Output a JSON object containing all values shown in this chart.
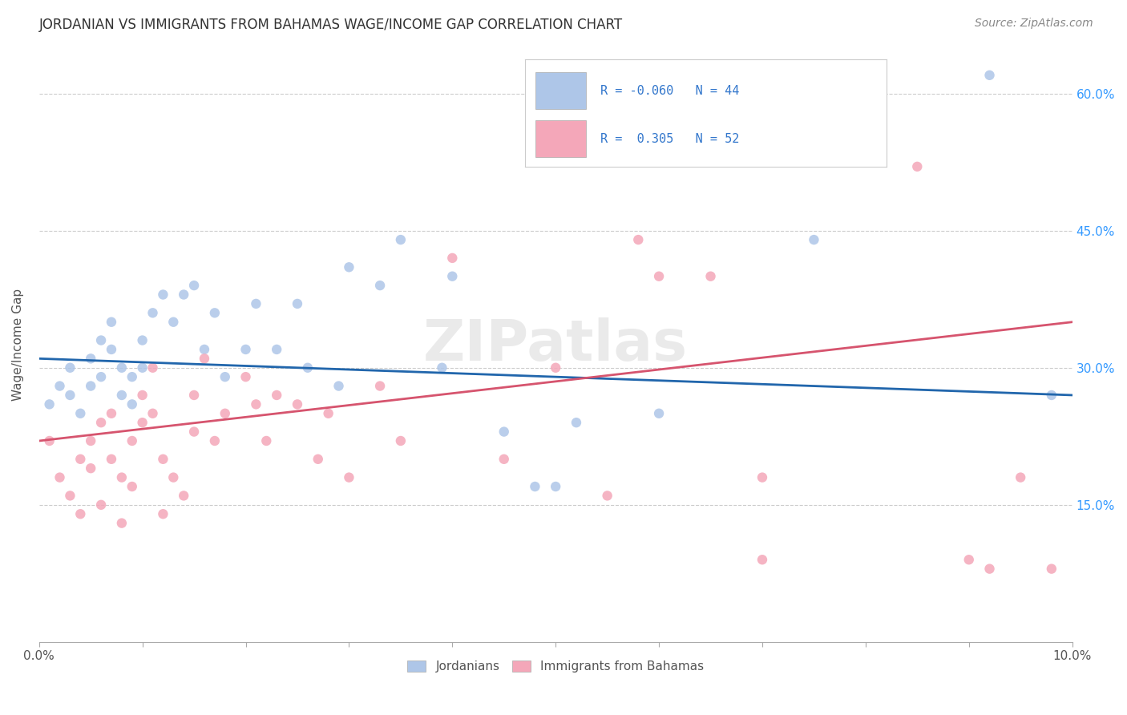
{
  "title": "JORDANIAN VS IMMIGRANTS FROM BAHAMAS WAGE/INCOME GAP CORRELATION CHART",
  "source": "Source: ZipAtlas.com",
  "ylabel": "Wage/Income Gap",
  "ytick_labels": [
    "15.0%",
    "30.0%",
    "45.0%",
    "60.0%"
  ],
  "ytick_positions": [
    15,
    30,
    45,
    60
  ],
  "legend_labels": [
    "Jordanians",
    "Immigrants from Bahamas"
  ],
  "blue_R": "-0.060",
  "blue_N": "44",
  "pink_R": "0.305",
  "pink_N": "52",
  "blue_color": "#aec6e8",
  "pink_color": "#f4a7b9",
  "blue_line_color": "#2166ac",
  "pink_line_color": "#d6546e",
  "watermark": "ZIPatlas",
  "background_color": "#ffffff",
  "blue_scatter_x": [
    0.1,
    0.2,
    0.3,
    0.3,
    0.4,
    0.5,
    0.5,
    0.6,
    0.6,
    0.7,
    0.7,
    0.8,
    0.8,
    0.9,
    0.9,
    1.0,
    1.0,
    1.1,
    1.2,
    1.3,
    1.4,
    1.5,
    1.6,
    1.7,
    1.8,
    2.0,
    2.1,
    2.3,
    2.5,
    2.6,
    2.9,
    3.0,
    3.3,
    3.5,
    3.9,
    4.0,
    4.5,
    4.8,
    5.0,
    5.2,
    6.0,
    7.5,
    9.2,
    9.8
  ],
  "blue_scatter_y": [
    26,
    28,
    30,
    27,
    25,
    31,
    28,
    33,
    29,
    35,
    32,
    30,
    27,
    29,
    26,
    33,
    30,
    36,
    38,
    35,
    38,
    39,
    32,
    36,
    29,
    32,
    37,
    32,
    37,
    30,
    28,
    41,
    39,
    44,
    30,
    40,
    23,
    17,
    17,
    24,
    25,
    44,
    62,
    27
  ],
  "pink_scatter_x": [
    0.1,
    0.2,
    0.3,
    0.4,
    0.4,
    0.5,
    0.5,
    0.6,
    0.6,
    0.7,
    0.7,
    0.8,
    0.8,
    0.9,
    0.9,
    1.0,
    1.0,
    1.1,
    1.1,
    1.2,
    1.2,
    1.3,
    1.4,
    1.5,
    1.5,
    1.6,
    1.7,
    1.8,
    2.0,
    2.1,
    2.2,
    2.3,
    2.5,
    2.7,
    2.8,
    3.0,
    3.3,
    3.5,
    4.0,
    4.5,
    5.0,
    5.5,
    5.8,
    6.0,
    6.5,
    7.0,
    7.0,
    8.5,
    9.0,
    9.2,
    9.5,
    9.8
  ],
  "pink_scatter_y": [
    22,
    18,
    16,
    20,
    14,
    22,
    19,
    24,
    15,
    25,
    20,
    18,
    13,
    22,
    17,
    27,
    24,
    30,
    25,
    14,
    20,
    18,
    16,
    27,
    23,
    31,
    22,
    25,
    29,
    26,
    22,
    27,
    26,
    20,
    25,
    18,
    28,
    22,
    42,
    20,
    30,
    16,
    44,
    40,
    40,
    18,
    9,
    52,
    9,
    8,
    18,
    8
  ],
  "xlim": [
    0,
    10
  ],
  "ylim": [
    0,
    65
  ],
  "blue_line_x0": 0,
  "blue_line_y0": 31,
  "blue_line_x1": 10,
  "blue_line_y1": 27,
  "pink_line_x0": 0,
  "pink_line_y0": 22,
  "pink_line_x1": 10,
  "pink_line_y1": 35
}
